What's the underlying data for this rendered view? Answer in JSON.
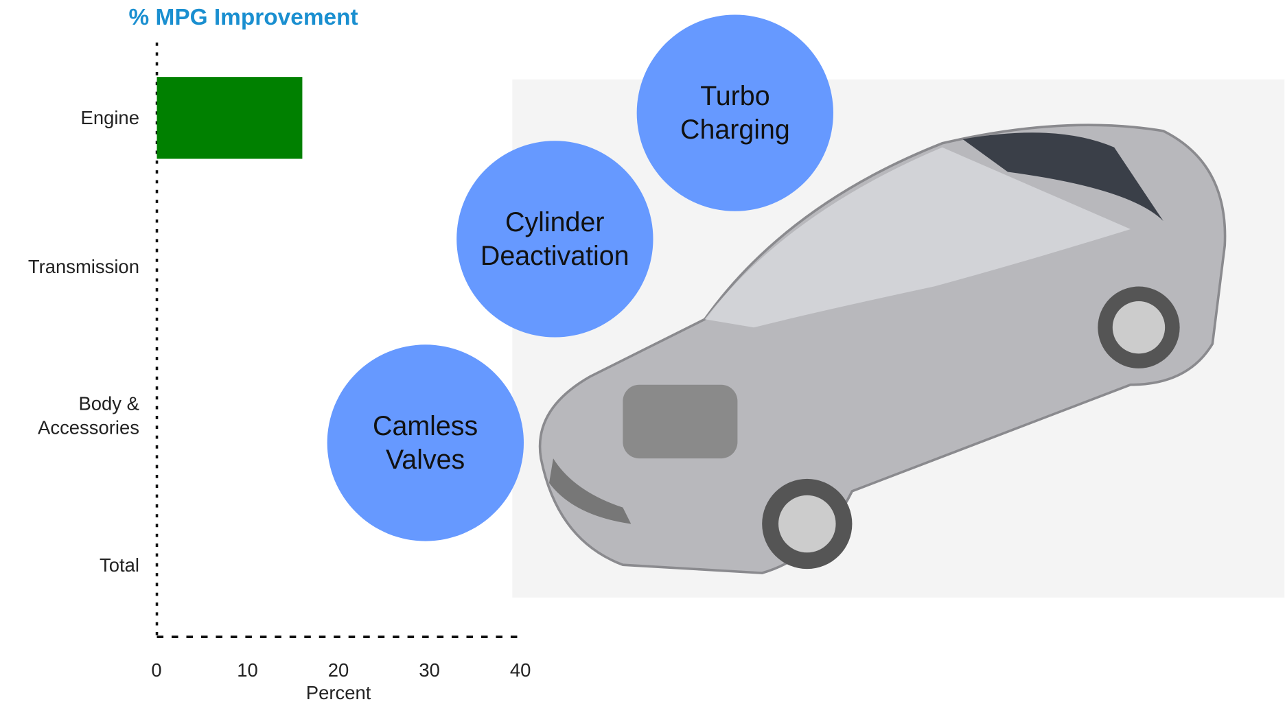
{
  "chart_data": {
    "type": "hbar",
    "title": "% MPG Improvement",
    "categories": [
      "Engine",
      "Transmission",
      "Body &\nAccessories",
      "Total"
    ],
    "values": [
      16,
      null,
      null,
      null
    ],
    "color": "#008000",
    "xlim": [
      0,
      40
    ],
    "xticks": [
      0,
      10,
      20,
      30,
      40
    ],
    "xlabel": "Percent",
    "grid": false,
    "annotations": [
      "Turbo\nCharging",
      "Cylinder\nDeactivation",
      "Camless\nValves"
    ],
    "annotation_color": "#6699ff",
    "title_color": "#1a8fd0"
  }
}
